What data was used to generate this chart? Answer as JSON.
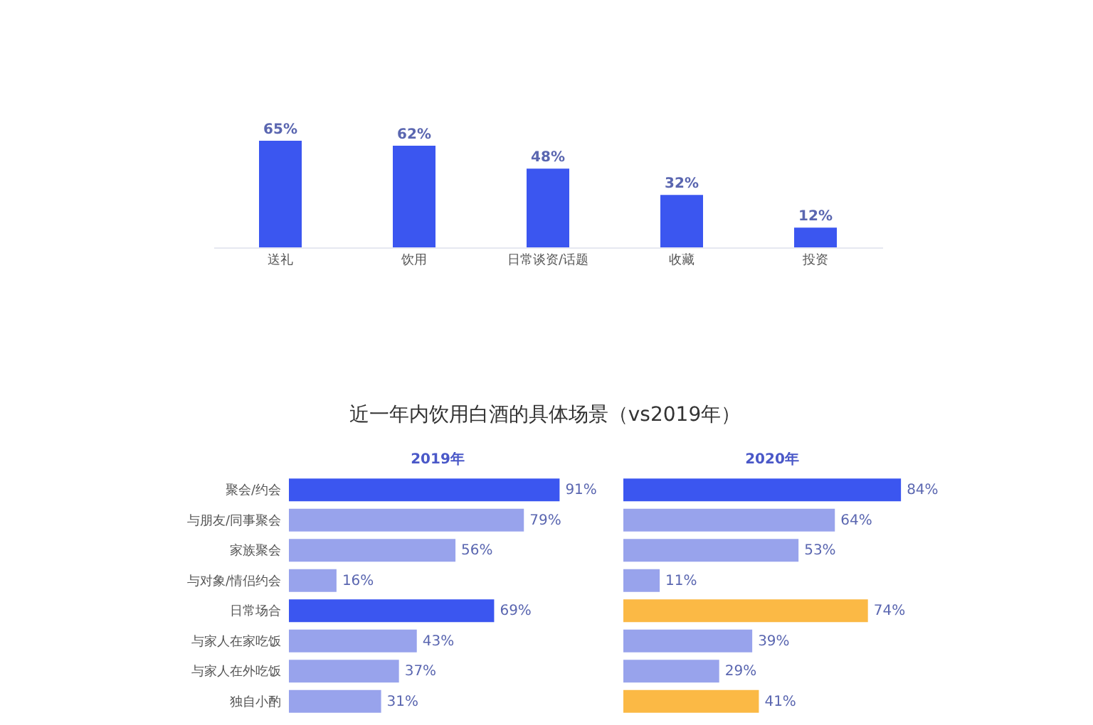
{
  "chart_data": [
    {
      "type": "bar",
      "categories": [
        "送礼",
        "饮用",
        "日常谈资/话题",
        "收藏",
        "投资"
      ],
      "values": [
        65,
        62,
        48,
        32,
        12
      ],
      "value_labels": [
        "65%",
        "62%",
        "48%",
        "32%",
        "12%"
      ],
      "color": "#3b56f0",
      "tick_labels": "x"
    },
    {
      "type": "bar",
      "orientation": "horizontal",
      "title": "近一年内饮用白酒的具体场景（vs2019年）",
      "subtitle": "2019年",
      "categories": [
        "聚会/约会",
        "与朋友/同事聚会",
        "家族聚会",
        "与对象/情侣约会",
        "日常场合",
        "与家人在家吃饭",
        "与家人在外吃饭",
        "独自小酌"
      ],
      "values": [
        91,
        79,
        56,
        16,
        69,
        43,
        37,
        31
      ],
      "value_labels": [
        "91%",
        "79%",
        "56%",
        "16%",
        "69%",
        "43%",
        "37%",
        "31%"
      ],
      "colors": [
        "#3b56f0",
        "#98a3ec",
        "#98a3ec",
        "#98a3ec",
        "#3b56f0",
        "#98a3ec",
        "#98a3ec",
        "#98a3ec"
      ],
      "tick_labels": "y"
    },
    {
      "type": "bar",
      "orientation": "horizontal",
      "title": "2020年",
      "categories": [
        "聚会/约会",
        "与朋友/同事聚会",
        "家族聚会",
        "与对象/情侣约会",
        "日常场合",
        "与家人在家吃饭",
        "与家人在外吃饭",
        "独自小酌"
      ],
      "values": [
        84,
        64,
        53,
        11,
        74,
        39,
        29,
        41
      ],
      "value_labels": [
        "84%",
        "64%",
        "53%",
        "11%",
        "74%",
        "39%",
        "29%",
        "41%"
      ],
      "colors": [
        "#3b56f0",
        "#98a3ec",
        "#98a3ec",
        "#98a3ec",
        "#fbb945",
        "#98a3ec",
        "#98a3ec",
        "#fbb945"
      ],
      "tick_labels": false
    }
  ]
}
